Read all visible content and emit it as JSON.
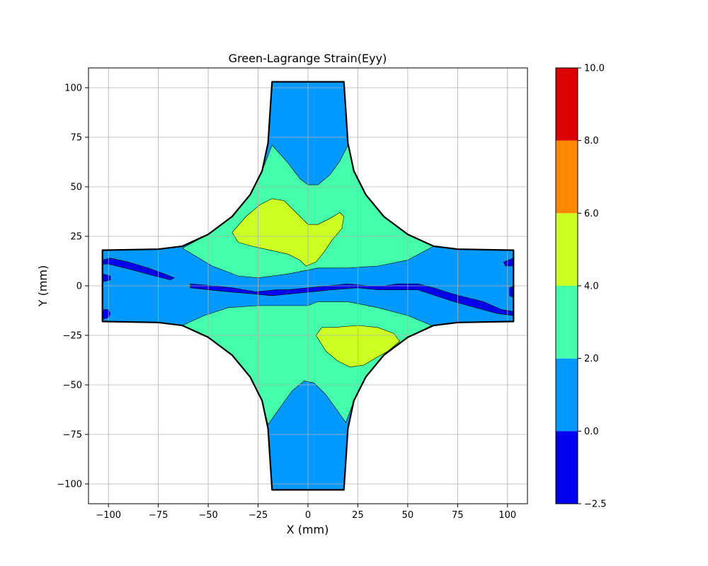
{
  "chart_data": {
    "type": "contour",
    "title": "Green-Lagrange Strain(Eyy)",
    "xlabel": "X (mm)",
    "ylabel": "Y (mm)",
    "xlim": [
      -110,
      110
    ],
    "ylim": [
      -110,
      110
    ],
    "grid": true,
    "x_ticks": [
      -100,
      -75,
      -50,
      -25,
      0,
      25,
      50,
      75,
      100
    ],
    "y_ticks": [
      -100,
      -75,
      -50,
      -25,
      0,
      25,
      50,
      75,
      100
    ],
    "x_tick_labels": [
      "−100",
      "−75",
      "−50",
      "−25",
      "0",
      "25",
      "50",
      "75",
      "100"
    ],
    "y_tick_labels": [
      "−100",
      "−75",
      "−50",
      "−25",
      "0",
      "25",
      "50",
      "75",
      "100"
    ],
    "colorbar": {
      "levels": [
        -2.5,
        0.0,
        2.0,
        4.0,
        6.0,
        8.0,
        10.0
      ],
      "tick_labels": [
        "−2.5",
        "0.0",
        "2.0",
        "4.0",
        "6.0",
        "8.0",
        "10.0"
      ],
      "colors": [
        "#0000ee",
        "#0099ff",
        "#44ffaa",
        "#ccff22",
        "#ff8800",
        "#dd0000"
      ]
    },
    "specimen_outline": [
      [
        -18,
        103
      ],
      [
        18,
        103
      ],
      [
        19,
        88
      ],
      [
        20,
        72
      ],
      [
        23,
        58
      ],
      [
        29,
        46
      ],
      [
        38,
        35
      ],
      [
        50,
        26
      ],
      [
        63,
        20
      ],
      [
        75,
        18.5
      ],
      [
        103,
        18
      ],
      [
        103,
        -18
      ],
      [
        75,
        -18.5
      ],
      [
        63,
        -20
      ],
      [
        50,
        -26
      ],
      [
        38,
        -35
      ],
      [
        29,
        -46
      ],
      [
        23,
        -58
      ],
      [
        20,
        -72
      ],
      [
        19,
        -88
      ],
      [
        18,
        -103
      ],
      [
        -18,
        -103
      ],
      [
        -19,
        -88
      ],
      [
        -20,
        -72
      ],
      [
        -23,
        -58
      ],
      [
        -29,
        -46
      ],
      [
        -38,
        -35
      ],
      [
        -50,
        -26
      ],
      [
        -63,
        -20
      ],
      [
        -75,
        -18.5
      ],
      [
        -103,
        -18
      ],
      [
        -103,
        18
      ],
      [
        -75,
        18.5
      ],
      [
        -63,
        20
      ],
      [
        -50,
        26
      ],
      [
        -38,
        35
      ],
      [
        -29,
        46
      ],
      [
        -23,
        58
      ],
      [
        -20,
        72
      ],
      [
        -19,
        88
      ]
    ],
    "regions": [
      {
        "level_index": 2,
        "label": "2.0–4.0",
        "polygon": [
          [
            -18,
            71
          ],
          [
            -10,
            62
          ],
          [
            -4,
            54
          ],
          [
            0,
            51
          ],
          [
            5,
            51
          ],
          [
            11,
            56
          ],
          [
            16,
            63
          ],
          [
            20,
            71
          ],
          [
            23,
            58
          ],
          [
            29,
            46
          ],
          [
            38,
            35
          ],
          [
            50,
            26
          ],
          [
            63,
            20
          ],
          [
            50,
            13
          ],
          [
            35,
            10
          ],
          [
            20,
            9
          ],
          [
            5,
            9
          ],
          [
            -10,
            6
          ],
          [
            -25,
            4
          ],
          [
            -35,
            5
          ],
          [
            -48,
            10
          ],
          [
            -63,
            19
          ],
          [
            -50,
            26
          ],
          [
            -38,
            35
          ],
          [
            -29,
            46
          ],
          [
            -23,
            58
          ]
        ]
      },
      {
        "level_index": 2,
        "label": "2.0–4.0",
        "polygon": [
          [
            -63,
            -20
          ],
          [
            -52,
            -15
          ],
          [
            -40,
            -11
          ],
          [
            -25,
            -10
          ],
          [
            -10,
            -10
          ],
          [
            0,
            -10
          ],
          [
            5,
            -8
          ],
          [
            20,
            -8
          ],
          [
            35,
            -11
          ],
          [
            50,
            -15
          ],
          [
            62,
            -20
          ],
          [
            50,
            -26
          ],
          [
            38,
            -35
          ],
          [
            29,
            -46
          ],
          [
            23,
            -58
          ],
          [
            19,
            -69
          ],
          [
            14,
            -62
          ],
          [
            9,
            -55
          ],
          [
            3,
            -49
          ],
          [
            -2,
            -48
          ],
          [
            -8,
            -53
          ],
          [
            -13,
            -60
          ],
          [
            -20,
            -70
          ],
          [
            -23,
            -58
          ],
          [
            -29,
            -46
          ],
          [
            -38,
            -35
          ],
          [
            -50,
            -26
          ]
        ]
      },
      {
        "level_index": 3,
        "label": "4.0–6.0",
        "polygon": [
          [
            -38,
            27
          ],
          [
            -31,
            35
          ],
          [
            -24,
            41
          ],
          [
            -18,
            44
          ],
          [
            -12,
            43
          ],
          [
            -6,
            37
          ],
          [
            0,
            31
          ],
          [
            5,
            31
          ],
          [
            11,
            34
          ],
          [
            16,
            37
          ],
          [
            18,
            35
          ],
          [
            17,
            29
          ],
          [
            12,
            23
          ],
          [
            8,
            17
          ],
          [
            4,
            12
          ],
          [
            -1,
            10
          ],
          [
            -4,
            13
          ],
          [
            -10,
            16
          ],
          [
            -19,
            18
          ],
          [
            -28,
            20
          ],
          [
            -35,
            22
          ]
        ]
      },
      {
        "level_index": 3,
        "label": "4.0–6.0",
        "polygon": [
          [
            4,
            -25
          ],
          [
            7,
            -21
          ],
          [
            13,
            -21
          ],
          [
            25,
            -20
          ],
          [
            35,
            -21
          ],
          [
            43,
            -24
          ],
          [
            46,
            -28
          ],
          [
            40,
            -33
          ],
          [
            33,
            -37
          ],
          [
            28,
            -40
          ],
          [
            21,
            -41
          ],
          [
            15,
            -38
          ],
          [
            9,
            -33
          ]
        ]
      },
      {
        "level_index": 0,
        "label": "−2.5–0.0",
        "polygon": [
          [
            -103,
            13
          ],
          [
            -99,
            14
          ],
          [
            -90,
            12
          ],
          [
            -80,
            9
          ],
          [
            -72,
            6
          ],
          [
            -67,
            4
          ],
          [
            -69,
            3
          ],
          [
            -77,
            5
          ],
          [
            -88,
            8
          ],
          [
            -100,
            11
          ],
          [
            -103,
            11
          ]
        ]
      },
      {
        "level_index": 0,
        "label": "−2.5–0.0",
        "polygon": [
          [
            -103,
            6
          ],
          [
            -99,
            5
          ],
          [
            -99,
            3
          ],
          [
            -103,
            2
          ]
        ]
      },
      {
        "level_index": 0,
        "label": "−2.5–0.0",
        "polygon": [
          [
            -103,
            -12
          ],
          [
            -100,
            -12
          ],
          [
            -99,
            -14
          ],
          [
            -100,
            -16
          ],
          [
            -103,
            -17
          ]
        ]
      },
      {
        "level_index": 0,
        "label": "−2.5–0.0",
        "polygon": [
          [
            -59,
            1
          ],
          [
            -47,
            0
          ],
          [
            -38,
            -1
          ],
          [
            -26,
            -3
          ],
          [
            -16,
            -2
          ],
          [
            -10,
            -2
          ],
          [
            0,
            -1
          ],
          [
            10,
            0
          ],
          [
            20,
            1
          ],
          [
            30,
            0
          ],
          [
            38,
            0
          ],
          [
            45,
            1
          ],
          [
            55,
            1
          ],
          [
            63,
            -1
          ],
          [
            69,
            -3
          ],
          [
            76,
            -5
          ],
          [
            88,
            -8
          ],
          [
            97,
            -12
          ],
          [
            103,
            -13
          ],
          [
            103,
            -15
          ],
          [
            95,
            -14
          ],
          [
            84,
            -11
          ],
          [
            73,
            -8
          ],
          [
            64,
            -5
          ],
          [
            55,
            -2
          ],
          [
            45,
            -2
          ],
          [
            35,
            -2
          ],
          [
            25,
            -1
          ],
          [
            12,
            -2
          ],
          [
            2,
            -3
          ],
          [
            -8,
            -4
          ],
          [
            -18,
            -5
          ],
          [
            -28,
            -4
          ],
          [
            -40,
            -3
          ],
          [
            -50,
            -2
          ],
          [
            -59,
            -1
          ]
        ]
      },
      {
        "level_index": 0,
        "label": "−2.5–0.0",
        "polygon": [
          [
            98,
            12
          ],
          [
            103,
            14
          ],
          [
            103,
            10
          ],
          [
            99,
            10
          ]
        ]
      },
      {
        "level_index": 0,
        "label": "−2.5–0.0",
        "polygon": [
          [
            101,
            -1
          ],
          [
            103,
            0
          ],
          [
            103,
            -6
          ],
          [
            101,
            -5
          ]
        ]
      }
    ]
  }
}
